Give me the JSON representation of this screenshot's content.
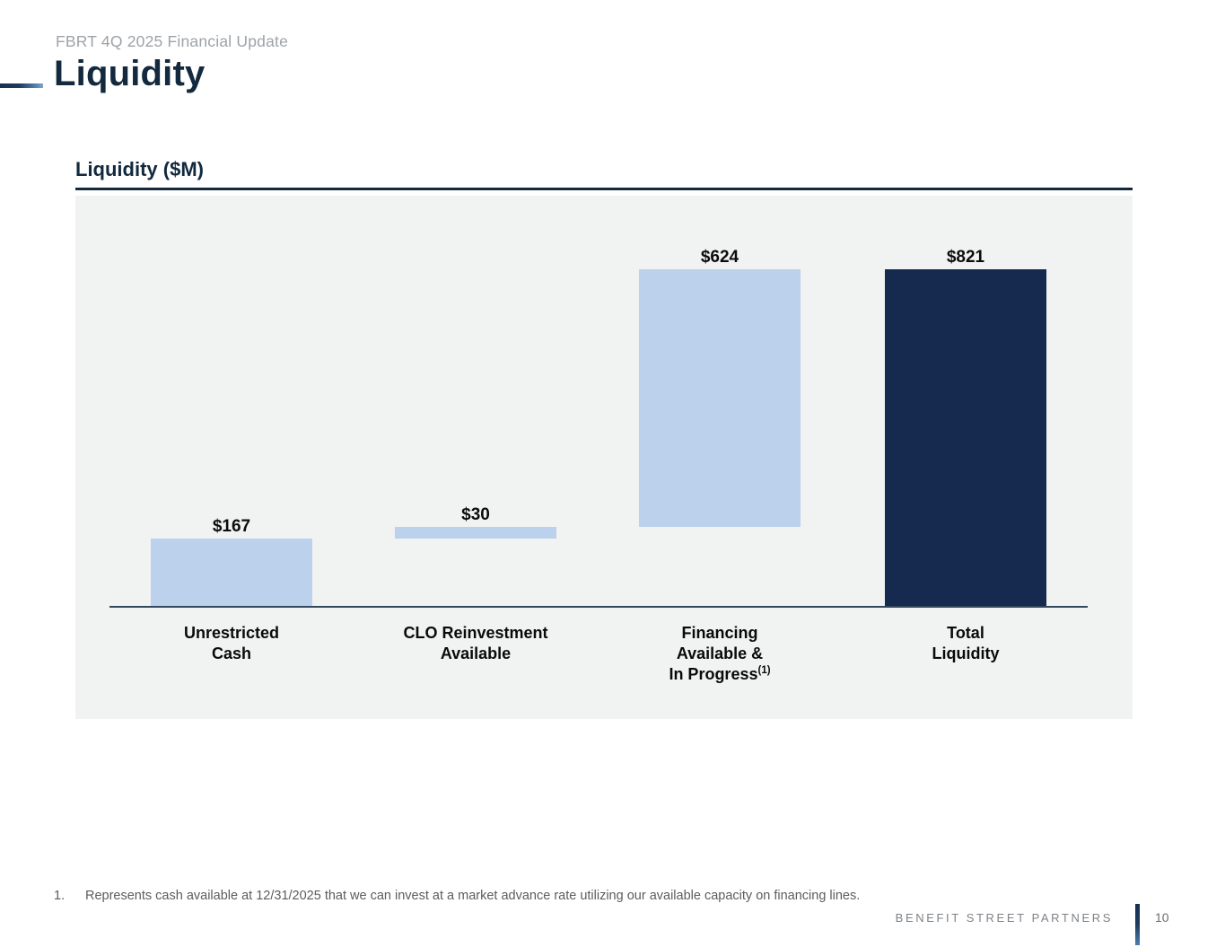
{
  "page": {
    "eyebrow": "FBRT 4Q 2025 Financial Update",
    "title": "Liquidity"
  },
  "chart_data": {
    "type": "bar",
    "subtype": "waterfall",
    "title": "Liquidity ($M)",
    "unit": "$M",
    "categories": [
      {
        "lines": [
          "Unrestricted",
          "Cash"
        ]
      },
      {
        "lines": [
          "CLO Reinvestment",
          "Available"
        ]
      },
      {
        "lines": [
          "Financing",
          "Available &",
          "In Progress"
        ],
        "footnote_ref": "(1)"
      },
      {
        "lines": [
          "Total",
          "Liquidity"
        ]
      }
    ],
    "values": [
      167,
      30,
      624,
      821
    ],
    "bars": [
      {
        "value_label": "$167",
        "value": 167,
        "start": 0,
        "end": 167,
        "color_key": "light"
      },
      {
        "value_label": "$30",
        "value": 30,
        "start": 167,
        "end": 197,
        "color_key": "light"
      },
      {
        "value_label": "$624",
        "value": 624,
        "start": 197,
        "end": 821,
        "color_key": "light"
      },
      {
        "value_label": "$821",
        "value": 821,
        "start": 0,
        "end": 821,
        "color_key": "dark"
      }
    ],
    "axis": {
      "min": 0,
      "max": 1000,
      "gridlines": false,
      "y_tick_labels_visible": false
    },
    "legend": "none",
    "colors": {
      "light": "#BCD1EC",
      "dark": "#16294E",
      "baseline": "#33485C",
      "panel_bg": "#F1F2F2"
    }
  },
  "footnotes": [
    {
      "num": "1.",
      "text": "Represents cash available at 12/31/2025 that we can invest at a market advance rate utilizing our available capacity on financing lines."
    }
  ],
  "footer": {
    "brand": "BENEFIT STREET PARTNERS",
    "page_number": "10"
  },
  "colors": {
    "accent_navy": "#13293E",
    "eyebrow_gray": "#9EA3A8",
    "footnote_gray": "#595D61",
    "footer_gray": "#7E8286"
  }
}
